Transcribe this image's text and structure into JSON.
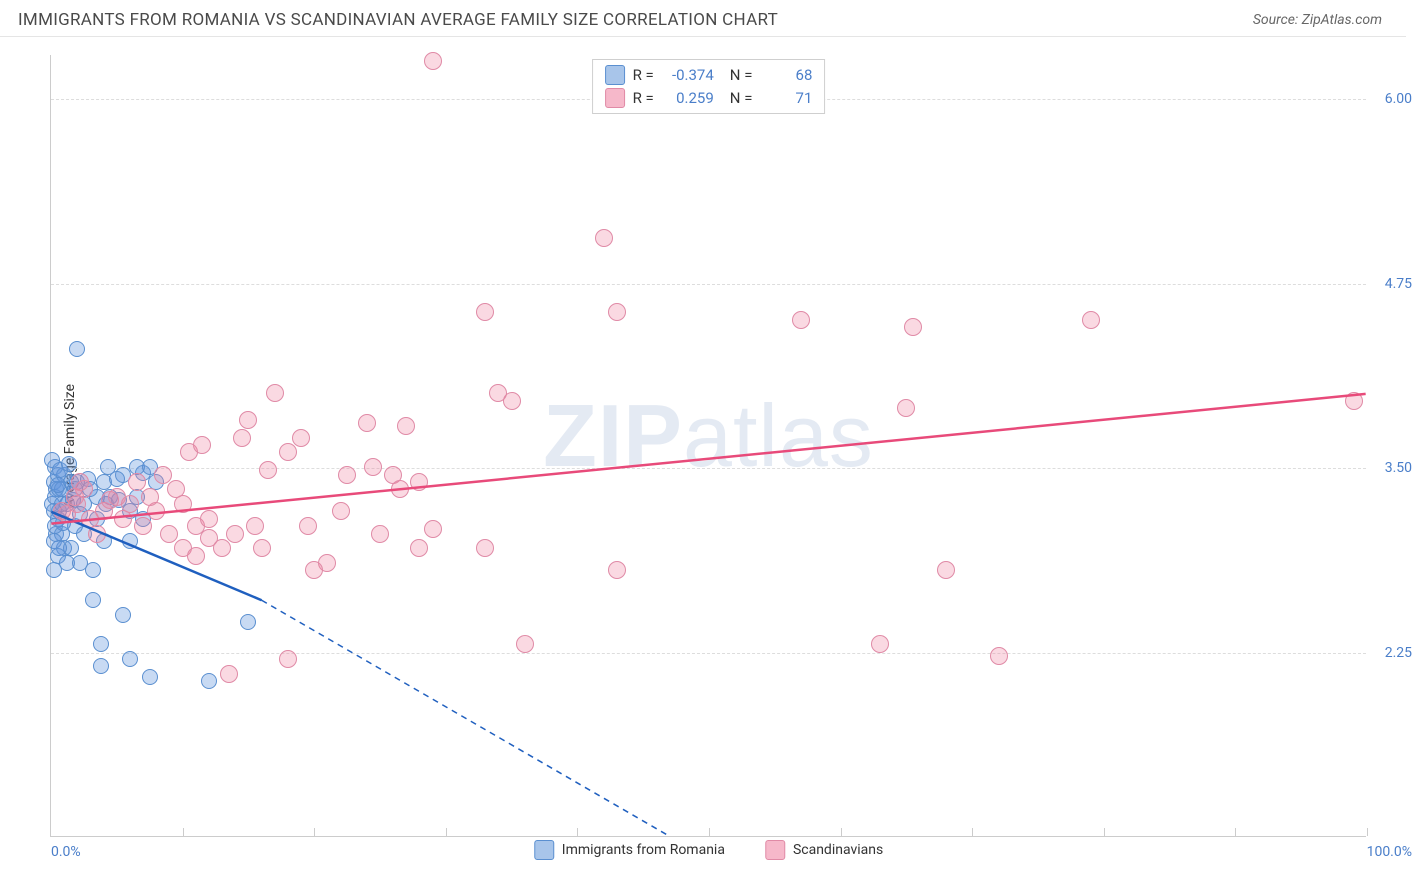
{
  "title": "IMMIGRANTS FROM ROMANIA VS SCANDINAVIAN AVERAGE FAMILY SIZE CORRELATION CHART",
  "source": "Source: ZipAtlas.com",
  "watermark_bold": "ZIP",
  "watermark_light": "atlas",
  "chart": {
    "type": "scatter",
    "ylabel": "Average Family Size",
    "xlim": [
      0,
      100
    ],
    "ylim": [
      1.0,
      6.3
    ],
    "yticks": [
      2.25,
      3.5,
      4.75,
      6.0
    ],
    "xticks_minor": [
      10,
      20,
      30,
      40,
      50,
      60,
      70,
      80,
      90,
      100
    ],
    "xtick_labels": {
      "left": "0.0%",
      "right": "100.0%"
    },
    "series": [
      {
        "name": "Immigrants from Romania",
        "fill": "rgba(96, 150, 220, 0.35)",
        "stroke": "#5a8fd0",
        "trend_color": "#1f5fbf",
        "swatch_fill": "#a8c5ea",
        "swatch_border": "#5a8fd0",
        "R": "-0.374",
        "N": "68",
        "point_radius": 8,
        "trend": {
          "x1": 0,
          "y1": 3.2,
          "x2_solid": 16,
          "y2_solid": 2.6,
          "x2": 47,
          "y2": 1.0
        },
        "points": [
          [
            0.1,
            3.55
          ],
          [
            0.2,
            3.4
          ],
          [
            0.3,
            3.5
          ],
          [
            0.4,
            3.35
          ],
          [
            0.1,
            3.25
          ],
          [
            0.3,
            3.3
          ],
          [
            0.5,
            3.45
          ],
          [
            0.6,
            3.35
          ],
          [
            0.2,
            3.2
          ],
          [
            0.4,
            3.05
          ],
          [
            0.8,
            3.05
          ],
          [
            0.5,
            3.15
          ],
          [
            0.2,
            3.0
          ],
          [
            1.0,
            2.95
          ],
          [
            1.5,
            2.95
          ],
          [
            0.5,
            2.9
          ],
          [
            0.2,
            2.8
          ],
          [
            1.2,
            2.85
          ],
          [
            0.6,
            3.2
          ],
          [
            0.8,
            3.35
          ],
          [
            2.0,
            3.4
          ],
          [
            4.0,
            3.4
          ],
          [
            5.5,
            3.45
          ],
          [
            3.5,
            3.3
          ],
          [
            2.5,
            3.05
          ],
          [
            4.5,
            3.3
          ],
          [
            7.0,
            3.46
          ],
          [
            8.0,
            3.4
          ],
          [
            4.3,
            3.5
          ],
          [
            6.0,
            3.2
          ],
          [
            6.5,
            3.5
          ],
          [
            7.5,
            3.5
          ],
          [
            2.0,
            4.3
          ],
          [
            2.2,
            2.85
          ],
          [
            3.2,
            2.6
          ],
          [
            3.2,
            2.8
          ],
          [
            4.0,
            3.0
          ],
          [
            6.0,
            3.0
          ],
          [
            3.8,
            2.3
          ],
          [
            3.8,
            2.15
          ],
          [
            5.5,
            2.5
          ],
          [
            6.0,
            2.2
          ],
          [
            7.5,
            2.08
          ],
          [
            12.0,
            2.05
          ],
          [
            15.0,
            2.45
          ],
          [
            1.0,
            3.45
          ],
          [
            1.8,
            3.35
          ],
          [
            2.8,
            3.42
          ],
          [
            5.0,
            3.42
          ],
          [
            3.0,
            3.35
          ],
          [
            1.5,
            3.4
          ],
          [
            0.5,
            3.38
          ],
          [
            0.3,
            3.1
          ],
          [
            0.8,
            3.25
          ],
          [
            1.2,
            3.25
          ],
          [
            1.8,
            3.1
          ],
          [
            2.5,
            3.25
          ],
          [
            2.2,
            3.18
          ],
          [
            0.7,
            3.48
          ],
          [
            1.4,
            3.52
          ],
          [
            0.6,
            2.95
          ],
          [
            0.9,
            3.12
          ],
          [
            1.7,
            3.28
          ],
          [
            3.5,
            3.15
          ],
          [
            4.2,
            3.25
          ],
          [
            5.2,
            3.28
          ],
          [
            6.5,
            3.3
          ],
          [
            7.0,
            3.15
          ]
        ]
      },
      {
        "name": "Scandinavians",
        "fill": "rgba(240, 130, 160, 0.30)",
        "stroke": "#e08aa6",
        "trend_color": "#e84a7a",
        "swatch_fill": "#f6b8ca",
        "swatch_border": "#e08aa6",
        "R": "0.259",
        "N": "71",
        "point_radius": 9,
        "trend": {
          "x1": 0,
          "y1": 3.12,
          "x2_solid": 100,
          "y2_solid": 4.0,
          "x2": 100,
          "y2": 4.0
        },
        "points": [
          [
            2.0,
            3.25
          ],
          [
            3.0,
            3.15
          ],
          [
            4.0,
            3.2
          ],
          [
            5.5,
            3.15
          ],
          [
            8.0,
            3.2
          ],
          [
            10.0,
            3.25
          ],
          [
            7.0,
            3.1
          ],
          [
            9.0,
            3.05
          ],
          [
            11.0,
            3.1
          ],
          [
            6.0,
            3.25
          ],
          [
            12.0,
            3.02
          ],
          [
            12.0,
            3.15
          ],
          [
            13.0,
            2.95
          ],
          [
            14.0,
            3.05
          ],
          [
            15.5,
            3.1
          ],
          [
            13.5,
            2.1
          ],
          [
            17.0,
            4.0
          ],
          [
            10.5,
            3.6
          ],
          [
            11.5,
            3.65
          ],
          [
            18.0,
            3.6
          ],
          [
            14.5,
            3.7
          ],
          [
            15.0,
            3.82
          ],
          [
            16.0,
            2.95
          ],
          [
            21.0,
            2.85
          ],
          [
            19.0,
            3.7
          ],
          [
            18.0,
            2.2
          ],
          [
            22.5,
            3.45
          ],
          [
            24.5,
            3.5
          ],
          [
            24.0,
            3.8
          ],
          [
            25.0,
            3.05
          ],
          [
            26.0,
            3.45
          ],
          [
            27.0,
            3.78
          ],
          [
            28.0,
            3.4
          ],
          [
            26.5,
            3.35
          ],
          [
            28.0,
            2.95
          ],
          [
            29.0,
            6.25
          ],
          [
            29.0,
            3.08
          ],
          [
            33.0,
            2.95
          ],
          [
            33.0,
            4.55
          ],
          [
            34.0,
            4.0
          ],
          [
            35.0,
            3.95
          ],
          [
            36.0,
            2.3
          ],
          [
            42.0,
            5.05
          ],
          [
            43.0,
            4.55
          ],
          [
            43.0,
            2.8
          ],
          [
            57.0,
            4.5
          ],
          [
            63.0,
            2.3
          ],
          [
            65.0,
            3.9
          ],
          [
            65.5,
            4.45
          ],
          [
            68.0,
            2.8
          ],
          [
            72.0,
            2.22
          ],
          [
            79.0,
            4.5
          ],
          [
            99.0,
            3.95
          ],
          [
            6.5,
            3.4
          ],
          [
            8.5,
            3.45
          ],
          [
            4.5,
            3.28
          ],
          [
            3.5,
            3.05
          ],
          [
            5.0,
            3.3
          ],
          [
            7.5,
            3.3
          ],
          [
            9.5,
            3.35
          ],
          [
            10.0,
            2.95
          ],
          [
            11.0,
            2.9
          ],
          [
            20.0,
            2.8
          ],
          [
            16.5,
            3.48
          ],
          [
            19.5,
            3.1
          ],
          [
            22.0,
            3.2
          ],
          [
            2.5,
            3.35
          ],
          [
            1.8,
            3.3
          ],
          [
            0.8,
            3.2
          ],
          [
            1.2,
            3.18
          ],
          [
            2.2,
            3.4
          ]
        ]
      }
    ]
  }
}
